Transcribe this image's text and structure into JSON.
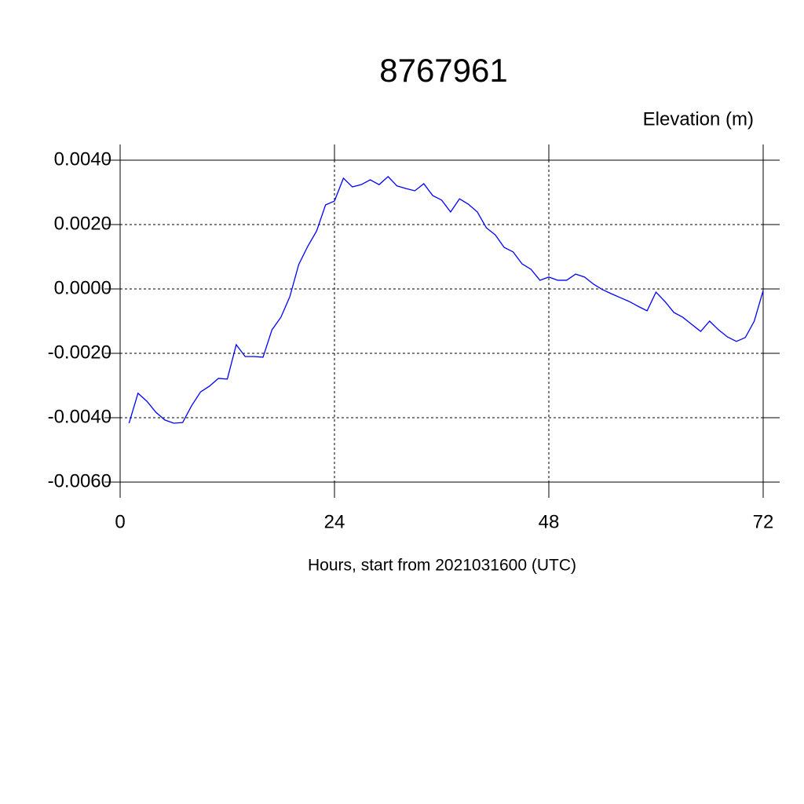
{
  "chart_data": {
    "type": "line",
    "title": "8767961",
    "ylabel": "Elevation (m)",
    "xlabel": "Hours, start from 2021031600 (UTC)",
    "x": [
      1,
      2,
      3,
      4,
      5,
      6,
      7,
      8,
      9,
      10,
      11,
      12,
      13,
      14,
      15,
      16,
      17,
      18,
      19,
      20,
      21,
      22,
      23,
      24,
      25,
      26,
      27,
      28,
      29,
      30,
      31,
      32,
      33,
      34,
      35,
      36,
      37,
      38,
      39,
      40,
      41,
      42,
      43,
      44,
      45,
      46,
      47,
      48,
      49,
      50,
      51,
      52,
      53,
      54,
      55,
      56,
      57,
      58,
      59,
      60,
      61,
      62,
      63,
      64,
      65,
      66,
      67,
      68,
      69,
      70,
      71,
      72
    ],
    "series": [
      {
        "color": "#0000ff",
        "values": [
          -0.00417,
          -0.00324,
          -0.00349,
          -0.00383,
          -0.00407,
          -0.00417,
          -0.00415,
          -0.00363,
          -0.0032,
          -0.00302,
          -0.00278,
          -0.0028,
          -0.00173,
          -0.0021,
          -0.0021,
          -0.00212,
          -0.00127,
          -0.00088,
          -0.00024,
          0.00076,
          0.00132,
          0.0018,
          0.00261,
          0.00273,
          0.00344,
          0.00317,
          0.00324,
          0.00339,
          0.00324,
          0.00349,
          0.0032,
          0.00312,
          0.00305,
          0.00327,
          0.0029,
          0.00276,
          0.00239,
          0.0028,
          0.00263,
          0.00239,
          0.0019,
          0.00168,
          0.00129,
          0.00115,
          0.00078,
          0.00061,
          0.00027,
          0.00037,
          0.00027,
          0.00027,
          0.00046,
          0.00037,
          0.00015,
          -2e-05,
          -0.00015,
          -0.00027,
          -0.00039,
          -0.00054,
          -0.00068,
          -0.0001,
          -0.00039,
          -0.00073,
          -0.00088,
          -0.0011,
          -0.00132,
          -0.001,
          -0.00127,
          -0.00149,
          -0.00163,
          -0.00151,
          -0.001,
          -5e-05
        ]
      }
    ],
    "xlim": [
      0,
      72
    ],
    "xticks": [
      0,
      24,
      48,
      72
    ],
    "ylim": [
      -0.006,
      0.004
    ],
    "yticks": [
      {
        "value": -0.006,
        "label": "-0.0060"
      },
      {
        "value": -0.004,
        "label": "-0.0040"
      },
      {
        "value": -0.002,
        "label": "-0.0020"
      },
      {
        "value": 0,
        "label": "0.0000"
      },
      {
        "value": 0.002,
        "label": "0.0020"
      },
      {
        "value": 0.004,
        "label": "0.0040"
      }
    ],
    "grid": true
  }
}
